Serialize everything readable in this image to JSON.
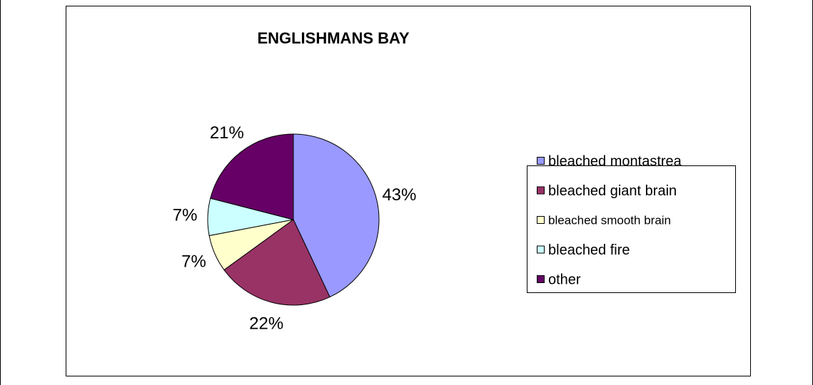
{
  "chart_data": {
    "type": "pie",
    "title": "ENGLISHMANS BAY",
    "categories": [
      "bleached montastrea",
      "bleached giant brain",
      "bleached smooth brain",
      "bleached fire",
      "other"
    ],
    "values": [
      43,
      22,
      7,
      7,
      21
    ],
    "value_labels": [
      "43%",
      "22%",
      "7%",
      "7%",
      "21%"
    ],
    "colors": [
      "#9999ff",
      "#993366",
      "#ffffcc",
      "#ccffff",
      "#660066"
    ],
    "legend": "right"
  }
}
